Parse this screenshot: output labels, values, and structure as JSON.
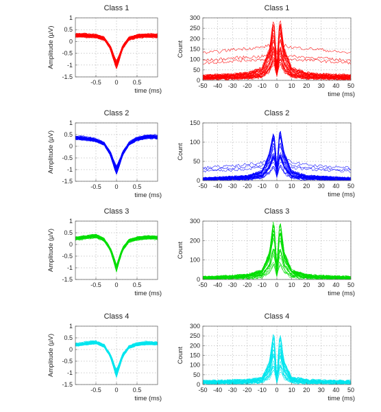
{
  "chart_data": [
    {
      "type": "line",
      "title": "Class 1",
      "xlabel": "time (ms)",
      "ylabel": "Amplitude (µV)",
      "xlim": [
        -1,
        1
      ],
      "ylim": [
        -1.5,
        1
      ],
      "xticks": [
        -0.5,
        0,
        0.5
      ],
      "yticks": [
        -1.5,
        -1,
        -0.5,
        0,
        0.5,
        1
      ],
      "grid": true,
      "color": "#ff0000",
      "series": [
        {
          "x": [
            -0.95,
            -0.75,
            -0.5,
            -0.3,
            -0.15,
            -0.05,
            0,
            0.05,
            0.15,
            0.3,
            0.5,
            0.75,
            0.95
          ],
          "values": [
            0.25,
            0.25,
            0.22,
            0.12,
            -0.25,
            -0.75,
            -0.98,
            -0.75,
            -0.25,
            0.12,
            0.22,
            0.25,
            0.24
          ]
        }
      ]
    },
    {
      "type": "line",
      "title": "Class 1",
      "xlabel": "time (ms)",
      "ylabel": "Count",
      "xlim": [
        -50,
        50
      ],
      "ylim": [
        0,
        300
      ],
      "xticks": [
        -50,
        -40,
        -30,
        -20,
        -10,
        0,
        10,
        20,
        30,
        40,
        50
      ],
      "yticks": [
        0,
        50,
        100,
        150,
        200,
        250,
        300
      ],
      "grid": true,
      "color": "#ff0000",
      "series": [
        {
          "x": [
            -50,
            -40,
            -30,
            -20,
            -10,
            -5,
            -2,
            0,
            2,
            5,
            10,
            20,
            30,
            40,
            50
          ],
          "values": [
            125,
            130,
            140,
            145,
            150,
            160,
            200,
            120,
            200,
            160,
            150,
            145,
            140,
            130,
            125
          ]
        },
        {
          "x": [
            -50,
            -40,
            -30,
            -20,
            -10,
            -5,
            -2,
            0,
            2,
            5,
            10,
            20,
            30,
            40,
            50
          ],
          "values": [
            20,
            22,
            25,
            30,
            50,
            130,
            260,
            60,
            265,
            130,
            50,
            30,
            25,
            22,
            20
          ]
        }
      ]
    },
    {
      "type": "line",
      "title": "Class 2",
      "xlabel": "time (ms)",
      "ylabel": "Amplitude (µV)",
      "xlim": [
        -1,
        1
      ],
      "ylim": [
        -1.5,
        1
      ],
      "xticks": [
        -0.5,
        0,
        0.5
      ],
      "yticks": [
        -1.5,
        -1,
        -0.5,
        0,
        0.5,
        1
      ],
      "grid": true,
      "color": "#0000ff",
      "series": [
        {
          "x": [
            -0.95,
            -0.75,
            -0.5,
            -0.3,
            -0.15,
            -0.05,
            0,
            0.05,
            0.15,
            0.3,
            0.5,
            0.75,
            0.95
          ],
          "values": [
            0.35,
            0.32,
            0.25,
            0.1,
            -0.3,
            -0.8,
            -1.0,
            -0.8,
            -0.3,
            0.1,
            0.3,
            0.4,
            0.38
          ]
        }
      ]
    },
    {
      "type": "line",
      "title": "Class 2",
      "xlabel": "time (ms)",
      "ylabel": "Count",
      "xlim": [
        -50,
        50
      ],
      "ylim": [
        0,
        150
      ],
      "xticks": [
        -50,
        -40,
        -30,
        -20,
        -10,
        0,
        10,
        20,
        30,
        40,
        50
      ],
      "yticks": [
        0,
        50,
        100,
        150
      ],
      "grid": true,
      "color": "#0000ff",
      "series": [
        {
          "x": [
            -50,
            -40,
            -30,
            -20,
            -10,
            -5,
            -2,
            0,
            2,
            5,
            10,
            20,
            30,
            40,
            50
          ],
          "values": [
            35,
            38,
            40,
            45,
            50,
            60,
            75,
            40,
            75,
            60,
            50,
            45,
            40,
            38,
            35
          ]
        },
        {
          "x": [
            -50,
            -40,
            -30,
            -20,
            -10,
            -5,
            -2,
            0,
            2,
            5,
            10,
            20,
            30,
            40,
            50
          ],
          "values": [
            5,
            6,
            8,
            10,
            20,
            60,
            110,
            30,
            115,
            60,
            20,
            10,
            8,
            6,
            5
          ]
        }
      ]
    },
    {
      "type": "line",
      "title": "Class 3",
      "xlabel": "time (ms)",
      "ylabel": "Amplitude (µV)",
      "xlim": [
        -1,
        1
      ],
      "ylim": [
        -1.5,
        1
      ],
      "xticks": [
        -0.5,
        0,
        0.5
      ],
      "yticks": [
        -1.5,
        -1,
        -0.5,
        0,
        0.5,
        1
      ],
      "grid": true,
      "color": "#00dd00",
      "series": [
        {
          "x": [
            -0.95,
            -0.75,
            -0.5,
            -0.3,
            -0.15,
            -0.05,
            0,
            0.05,
            0.15,
            0.3,
            0.5,
            0.75,
            0.95
          ],
          "values": [
            0.25,
            0.3,
            0.35,
            0.2,
            -0.2,
            -0.7,
            -1.0,
            -0.7,
            -0.2,
            0.15,
            0.25,
            0.3,
            0.28
          ]
        }
      ]
    },
    {
      "type": "line",
      "title": "Class 3",
      "xlabel": "time (ms)",
      "ylabel": "Count",
      "xlim": [
        -50,
        50
      ],
      "ylim": [
        0,
        300
      ],
      "xticks": [
        -50,
        -40,
        -30,
        -20,
        -10,
        0,
        10,
        20,
        30,
        40,
        50
      ],
      "yticks": [
        0,
        100,
        200,
        300
      ],
      "grid": true,
      "color": "#00dd00",
      "series": [
        {
          "x": [
            -50,
            -40,
            -30,
            -20,
            -10,
            -5,
            -2,
            0,
            2,
            5,
            10,
            20,
            30,
            40,
            50
          ],
          "values": [
            10,
            12,
            15,
            20,
            40,
            120,
            270,
            60,
            265,
            120,
            40,
            20,
            15,
            12,
            10
          ]
        }
      ]
    },
    {
      "type": "line",
      "title": "Class 4",
      "xlabel": "time (ms)",
      "ylabel": "Amplitude (µV)",
      "xlim": [
        -1,
        1
      ],
      "ylim": [
        -1.5,
        1
      ],
      "xticks": [
        -0.5,
        0,
        0.5
      ],
      "yticks": [
        -1.5,
        -1,
        -0.5,
        0,
        0.5,
        1
      ],
      "grid": true,
      "color": "#00e5ee",
      "series": [
        {
          "x": [
            -0.95,
            -0.75,
            -0.5,
            -0.3,
            -0.15,
            -0.05,
            0,
            0.05,
            0.15,
            0.3,
            0.5,
            0.75,
            0.95
          ],
          "values": [
            0.2,
            0.25,
            0.3,
            0.15,
            -0.25,
            -0.75,
            -1.0,
            -0.75,
            -0.25,
            0.1,
            0.22,
            0.27,
            0.25
          ]
        }
      ]
    },
    {
      "type": "line",
      "title": "Class 4",
      "xlabel": "time (ms)",
      "ylabel": "Count",
      "xlim": [
        -50,
        50
      ],
      "ylim": [
        0,
        300
      ],
      "xticks": [
        -50,
        -40,
        -30,
        -20,
        -10,
        0,
        10,
        20,
        30,
        40,
        50
      ],
      "yticks": [
        0,
        50,
        100,
        150,
        200,
        250,
        300
      ],
      "grid": true,
      "color": "#00e5ee",
      "series": [
        {
          "x": [
            -50,
            -40,
            -30,
            -20,
            -10,
            -5,
            -2,
            0,
            2,
            5,
            10,
            20,
            30,
            40,
            50
          ],
          "values": [
            15,
            15,
            18,
            20,
            30,
            100,
            240,
            30,
            235,
            100,
            30,
            20,
            18,
            15,
            15
          ]
        }
      ]
    }
  ]
}
